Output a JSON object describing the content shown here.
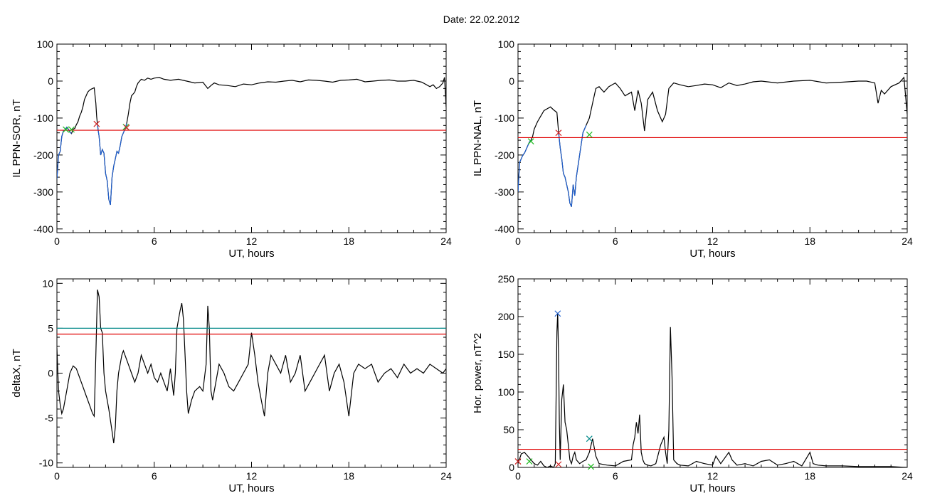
{
  "page": {
    "title": "Date:  22.02.2012"
  },
  "chart_data": [
    {
      "id": "top-left",
      "type": "line",
      "xlabel": "UT, hours",
      "ylabel": "IL PPN-SOR, nT",
      "xlim": [
        0,
        24
      ],
      "ylim": [
        -410,
        100
      ],
      "xticks": [
        0,
        6,
        12,
        18,
        24
      ],
      "yticks": [
        100,
        0,
        -100,
        -200,
        -300,
        -400
      ],
      "threshold": {
        "value": -133,
        "color": "#e00000"
      },
      "series": [
        {
          "color": "#000000",
          "x": [
            0,
            0.1,
            0.2,
            0.3,
            0.4,
            0.5,
            0.6,
            0.7,
            0.8,
            0.9,
            1.0,
            1.1,
            1.2,
            1.3,
            1.4,
            1.5,
            1.6,
            1.7,
            1.8,
            1.9,
            2.0,
            2.1,
            2.2,
            2.3,
            2.4,
            2.45,
            2.5,
            2.55,
            2.6,
            2.7,
            2.8,
            2.9,
            3.0,
            3.1,
            3.2,
            3.3,
            3.4,
            3.5,
            3.6,
            3.7,
            3.8,
            3.9,
            4.0,
            4.1,
            4.2,
            4.3,
            4.4,
            4.5,
            4.6,
            4.7,
            4.8,
            4.9,
            5.0,
            5.2,
            5.4,
            5.6,
            5.8,
            6.0,
            6.3,
            6.6,
            7.0,
            7.5,
            8.0,
            8.5,
            9.0,
            9.3,
            9.5,
            9.7,
            10,
            10.5,
            11,
            11.5,
            12,
            12.5,
            13,
            13.5,
            14,
            14.5,
            15,
            15.5,
            16,
            16.5,
            17,
            17.5,
            18,
            18.5,
            19,
            19.5,
            20,
            20.5,
            21,
            21.5,
            22,
            22.5,
            23,
            23.2,
            23.4,
            23.6,
            23.8,
            23.9,
            24
          ],
          "y": [
            -265,
            -200,
            -190,
            -150,
            -135,
            -132,
            -125,
            -130,
            -138,
            -142,
            -130,
            -128,
            -118,
            -110,
            -95,
            -85,
            -70,
            -50,
            -40,
            -30,
            -25,
            -22,
            -20,
            -18,
            -60,
            -95,
            -118,
            -135,
            -150,
            -200,
            -185,
            -195,
            -250,
            -270,
            -320,
            -335,
            -260,
            -230,
            -210,
            -190,
            -195,
            -175,
            -150,
            -140,
            -130,
            -115,
            -90,
            -60,
            -40,
            -35,
            -30,
            -15,
            -5,
            5,
            2,
            8,
            5,
            8,
            10,
            5,
            2,
            5,
            0,
            -5,
            -3,
            -20,
            -12,
            -5,
            -10,
            -12,
            -15,
            -8,
            -10,
            -5,
            -2,
            -3,
            0,
            2,
            -2,
            3,
            2,
            0,
            -3,
            2,
            3,
            5,
            -2,
            0,
            2,
            3,
            0,
            0,
            2,
            -3,
            -15,
            -10,
            -20,
            -15,
            -5,
            10,
            -70
          ]
        },
        {
          "color": "#1e5fd0",
          "x": [
            0.0,
            0.1,
            0.2,
            0.3,
            0.4,
            0.5,
            0.6,
            0.7,
            0.8,
            0.9
          ],
          "y": [
            -265,
            -200,
            -190,
            -150,
            -135,
            -132,
            -125,
            -130,
            -138,
            -142
          ]
        },
        {
          "color": "#1e5fd0",
          "x": [
            2.5,
            2.55,
            2.6,
            2.7,
            2.8,
            2.9,
            3.0,
            3.1,
            3.2,
            3.3,
            3.4,
            3.5,
            3.6,
            3.7,
            3.8,
            3.9,
            4.0,
            4.1,
            4.2,
            4.3
          ],
          "y": [
            -118,
            -135,
            -150,
            -200,
            -185,
            -195,
            -250,
            -270,
            -320,
            -335,
            -260,
            -230,
            -210,
            -190,
            -195,
            -175,
            -150,
            -140,
            -130,
            -115
          ]
        }
      ],
      "markers": [
        {
          "x": 0.55,
          "y": -131,
          "color": "#22bb22"
        },
        {
          "x": 0.9,
          "y": -131,
          "color": "#22bb22"
        },
        {
          "x": 2.45,
          "y": -116,
          "color": "#d02020"
        },
        {
          "x": 4.25,
          "y": -124,
          "color": "#22bb22"
        },
        {
          "x": 4.3,
          "y": -126,
          "color": "#d02020"
        }
      ]
    },
    {
      "id": "top-right",
      "type": "line",
      "xlabel": "UT, hours",
      "ylabel": "IL PPN-NAL, nT",
      "xlim": [
        0,
        24
      ],
      "ylim": [
        -410,
        100
      ],
      "xticks": [
        0,
        6,
        12,
        18,
        24
      ],
      "yticks": [
        100,
        0,
        -100,
        -200,
        -300,
        -400
      ],
      "threshold": {
        "value": -153,
        "color": "#e00000"
      },
      "series": [
        {
          "color": "#000000",
          "x": [
            0,
            0.1,
            0.2,
            0.3,
            0.4,
            0.5,
            0.6,
            0.7,
            0.8,
            0.9,
            1.0,
            1.2,
            1.4,
            1.6,
            1.8,
            2.0,
            2.2,
            2.4,
            2.5,
            2.6,
            2.7,
            2.8,
            2.9,
            3.0,
            3.1,
            3.2,
            3.3,
            3.4,
            3.5,
            3.6,
            3.7,
            3.8,
            3.9,
            4.0,
            4.2,
            4.4,
            4.6,
            4.8,
            5.0,
            5.3,
            5.6,
            6.0,
            6.3,
            6.6,
            7.0,
            7.2,
            7.4,
            7.6,
            7.8,
            8.0,
            8.3,
            8.6,
            8.9,
            9.1,
            9.3,
            9.6,
            10,
            10.5,
            11,
            11.5,
            12,
            12.5,
            13,
            13.5,
            14,
            14.5,
            15,
            16,
            17,
            18,
            19,
            20,
            21,
            21.5,
            22,
            22.2,
            22.4,
            22.6,
            23,
            23.5,
            23.8,
            24
          ],
          "y": [
            -300,
            -220,
            -210,
            -200,
            -195,
            -185,
            -175,
            -165,
            -160,
            -150,
            -130,
            -110,
            -95,
            -80,
            -75,
            -70,
            -78,
            -85,
            -138,
            -180,
            -210,
            -250,
            -260,
            -280,
            -300,
            -330,
            -340,
            -280,
            -310,
            -260,
            -230,
            -200,
            -170,
            -140,
            -120,
            -100,
            -60,
            -20,
            -15,
            -30,
            -15,
            -5,
            -20,
            -40,
            -30,
            -80,
            -25,
            -60,
            -135,
            -50,
            -30,
            -80,
            -110,
            -90,
            -20,
            -5,
            -10,
            -15,
            -12,
            -8,
            -10,
            -18,
            -5,
            -12,
            -8,
            -2,
            0,
            -5,
            0,
            2,
            -5,
            -3,
            0,
            0,
            -5,
            -60,
            -25,
            -35,
            -15,
            -5,
            10,
            -90
          ]
        },
        {
          "color": "#1e5fd0",
          "x": [
            0,
            0.1,
            0.2,
            0.3,
            0.4,
            0.5,
            0.6,
            0.7,
            0.8
          ],
          "y": [
            -300,
            -220,
            -210,
            -200,
            -195,
            -185,
            -175,
            -165,
            -160
          ]
        },
        {
          "color": "#1e5fd0",
          "x": [
            2.5,
            2.6,
            2.7,
            2.8,
            2.9,
            3.0,
            3.1,
            3.2,
            3.3,
            3.4,
            3.5,
            3.6,
            3.7,
            3.8,
            3.9,
            4.0,
            4.2
          ],
          "y": [
            -138,
            -180,
            -210,
            -250,
            -260,
            -280,
            -300,
            -330,
            -340,
            -280,
            -310,
            -260,
            -230,
            -200,
            -170,
            -140,
            -120
          ]
        }
      ],
      "markers": [
        {
          "x": 0.8,
          "y": -163,
          "color": "#22bb22"
        },
        {
          "x": 2.5,
          "y": -140,
          "color": "#d02020"
        },
        {
          "x": 4.4,
          "y": -145,
          "color": "#22bb22"
        }
      ]
    },
    {
      "id": "bottom-left",
      "type": "line",
      "xlabel": "UT, hours",
      "ylabel": "deltaX, nT",
      "xlim": [
        0,
        24
      ],
      "ylim": [
        -10.5,
        10.5
      ],
      "xticks": [
        0,
        6,
        12,
        18,
        24
      ],
      "yticks": [
        10,
        5,
        0,
        -5,
        -10
      ],
      "thresholds": [
        {
          "value": 5.0,
          "color": "#008888"
        },
        {
          "value": 4.35,
          "color": "#e00000"
        }
      ],
      "series": [
        {
          "color": "#000000",
          "x": [
            0,
            0.1,
            0.2,
            0.3,
            0.4,
            0.6,
            0.8,
            1.0,
            1.2,
            1.4,
            1.6,
            1.8,
            2.0,
            2.2,
            2.3,
            2.4,
            2.5,
            2.6,
            2.7,
            2.8,
            2.9,
            3.0,
            3.2,
            3.4,
            3.5,
            3.6,
            3.7,
            3.8,
            3.9,
            4.0,
            4.1,
            4.2,
            4.4,
            4.6,
            4.8,
            5.0,
            5.2,
            5.4,
            5.6,
            5.8,
            6.0,
            6.2,
            6.4,
            6.6,
            6.8,
            7.0,
            7.2,
            7.3,
            7.4,
            7.5,
            7.6,
            7.7,
            7.8,
            7.9,
            8.0,
            8.1,
            8.3,
            8.5,
            8.8,
            9.0,
            9.2,
            9.3,
            9.4,
            9.5,
            9.6,
            9.8,
            10,
            10.3,
            10.6,
            10.9,
            11.2,
            11.5,
            11.8,
            12.0,
            12.2,
            12.4,
            12.6,
            12.8,
            13.0,
            13.2,
            13.5,
            13.8,
            14.1,
            14.4,
            14.7,
            15.0,
            15.3,
            15.6,
            15.9,
            16.2,
            16.5,
            16.8,
            17.1,
            17.4,
            17.7,
            18.0,
            18.3,
            18.6,
            19,
            19.4,
            19.8,
            20.2,
            20.6,
            21,
            21.4,
            21.8,
            22.2,
            22.6,
            23,
            23.4,
            23.8,
            24
          ],
          "y": [
            2.8,
            -2,
            -3.5,
            -4.5,
            -4,
            -2,
            0,
            0.8,
            0.5,
            -0.5,
            -1.5,
            -2.5,
            -3.5,
            -4.5,
            -4.8,
            2,
            9.3,
            8.5,
            5,
            4.5,
            0,
            -2,
            -4,
            -6.5,
            -7.8,
            -6,
            -2,
            0,
            1,
            2,
            2.5,
            2,
            1,
            0,
            -1,
            0,
            2,
            1,
            0,
            1,
            -0.5,
            -1,
            0,
            -1,
            -2,
            0.5,
            -2.5,
            0,
            5,
            6,
            7,
            7.8,
            6,
            2,
            -2,
            -4.5,
            -3,
            -2,
            -1.5,
            -2,
            1,
            7.5,
            5,
            -2,
            -3,
            -1,
            1,
            0,
            -1.5,
            -2,
            -1,
            0,
            1,
            4.5,
            2,
            -1,
            -3,
            -4.8,
            0,
            2,
            1,
            0,
            2,
            -1,
            0,
            2,
            -2,
            -1,
            0,
            1,
            2,
            -2,
            0,
            1,
            -1,
            -4.8,
            0,
            1,
            0.5,
            1,
            -1,
            0,
            0.5,
            -0.5,
            1,
            0,
            0.5,
            0,
            1,
            0.5,
            0,
            0.5
          ]
        }
      ],
      "markers": []
    },
    {
      "id": "bottom-right",
      "type": "line",
      "xlabel": "UT, hours",
      "ylabel": "Hor. power, nT^2",
      "xlim": [
        0,
        24
      ],
      "ylim": [
        0,
        250
      ],
      "xticks": [
        0,
        6,
        12,
        18,
        24
      ],
      "yticks": [
        250,
        200,
        150,
        100,
        50,
        0
      ],
      "threshold": {
        "value": 24,
        "color": "#e00000"
      },
      "series": [
        {
          "color": "#000000",
          "x": [
            0,
            0.2,
            0.4,
            0.6,
            0.8,
            1.0,
            1.2,
            1.4,
            1.6,
            1.8,
            2.0,
            2.2,
            2.3,
            2.4,
            2.45,
            2.5,
            2.55,
            2.6,
            2.7,
            2.8,
            2.9,
            3.0,
            3.1,
            3.2,
            3.3,
            3.4,
            3.5,
            3.6,
            3.8,
            4.0,
            4.2,
            4.4,
            4.6,
            4.8,
            5.0,
            5.5,
            6.0,
            6.5,
            7.0,
            7.1,
            7.2,
            7.3,
            7.4,
            7.5,
            7.6,
            7.7,
            7.8,
            8.0,
            8.2,
            8.5,
            8.8,
            9.0,
            9.1,
            9.2,
            9.3,
            9.4,
            9.5,
            9.6,
            9.8,
            10,
            10.5,
            11,
            11.5,
            12,
            12.2,
            12.5,
            13,
            13.2,
            13.5,
            14,
            14.5,
            15,
            15.5,
            16,
            16.5,
            17,
            17.5,
            18,
            18.2,
            18.5,
            19,
            20,
            21,
            22,
            23,
            24
          ],
          "y": [
            5,
            18,
            20,
            15,
            10,
            5,
            3,
            8,
            2,
            0,
            2,
            0,
            5,
            180,
            205,
            150,
            60,
            10,
            90,
            110,
            60,
            50,
            30,
            10,
            5,
            15,
            20,
            10,
            5,
            8,
            10,
            20,
            38,
            15,
            5,
            3,
            2,
            8,
            10,
            30,
            40,
            60,
            45,
            70,
            20,
            10,
            5,
            3,
            2,
            5,
            30,
            40,
            20,
            5,
            50,
            186,
            120,
            10,
            5,
            3,
            2,
            8,
            5,
            3,
            15,
            5,
            20,
            10,
            3,
            5,
            2,
            8,
            10,
            3,
            5,
            8,
            2,
            20,
            5,
            3,
            2,
            2,
            1,
            1,
            1,
            0
          ]
        }
      ],
      "markers": [
        {
          "x": 0.0,
          "y": 8,
          "color": "#d02020"
        },
        {
          "x": 0.7,
          "y": 8,
          "color": "#22bb22"
        },
        {
          "x": 2.45,
          "y": 204,
          "color": "#1e5fd0"
        },
        {
          "x": 2.5,
          "y": 4,
          "color": "#d02020"
        },
        {
          "x": 4.4,
          "y": 38,
          "color": "#008888"
        },
        {
          "x": 4.5,
          "y": 1,
          "color": "#22bb22"
        }
      ]
    }
  ]
}
